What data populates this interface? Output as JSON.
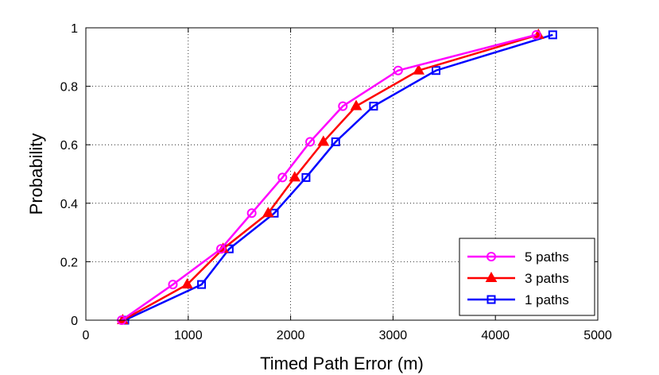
{
  "chart_data": {
    "type": "line",
    "title": "",
    "xlabel": "Timed Path Error (m)",
    "ylabel": "Probability",
    "xlim": [
      0,
      5000
    ],
    "ylim": [
      0,
      1
    ],
    "xticks": [
      0,
      1000,
      2000,
      3000,
      4000,
      5000
    ],
    "yticks": [
      0,
      0.2,
      0.4,
      0.6,
      0.8,
      1
    ],
    "xtick_labels": [
      "0",
      "1000",
      "2000",
      "3000",
      "4000",
      "5000"
    ],
    "ytick_labels": [
      "0",
      "0.2",
      "0.4",
      "0.6",
      "0.8",
      "1"
    ],
    "grid": true,
    "legend_position": "bottom-right",
    "series": [
      {
        "name": "5 paths",
        "color": "#ff00ff",
        "marker": "circle",
        "x": [
          350,
          850,
          1320,
          1620,
          1920,
          2190,
          2510,
          3050,
          4400
        ],
        "y": [
          0,
          0.122,
          0.244,
          0.366,
          0.488,
          0.61,
          0.732,
          0.854,
          0.976
        ]
      },
      {
        "name": "3 paths",
        "color": "#ff0000",
        "marker": "triangle",
        "x": [
          360,
          990,
          1340,
          1780,
          2040,
          2320,
          2640,
          3250,
          4420
        ],
        "y": [
          0,
          0.122,
          0.244,
          0.366,
          0.488,
          0.61,
          0.732,
          0.854,
          0.976
        ]
      },
      {
        "name": "1 paths",
        "color": "#0000ff",
        "marker": "square",
        "x": [
          380,
          1130,
          1400,
          1840,
          2150,
          2440,
          2810,
          3420,
          4560
        ],
        "y": [
          0,
          0.122,
          0.244,
          0.366,
          0.488,
          0.61,
          0.732,
          0.854,
          0.976
        ]
      }
    ]
  }
}
